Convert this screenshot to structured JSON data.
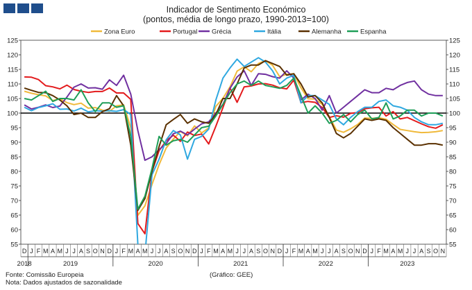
{
  "header": {
    "title": "Indicador de Sentimento Económico",
    "subtitle": "(pontos, média de longo prazo, 1990-2013=100)"
  },
  "footer": {
    "source": "Fonte: Comissão Europeia",
    "note": "Nota: Dados ajustados de sazonalidade",
    "credit": "(Gráfico: GEE)"
  },
  "chart_data": {
    "type": "line",
    "title": "Indicador de Sentimento Económico",
    "subtitle": "(pontos, média de longo prazo, 1990-2013=100)",
    "ylim": [
      55,
      125
    ],
    "yticks": [
      55,
      60,
      65,
      70,
      75,
      80,
      85,
      90,
      95,
      100,
      105,
      110,
      115,
      120,
      125
    ],
    "reference_line": 100,
    "legend_position": "top",
    "month_labels": [
      "D",
      "J",
      "F",
      "M",
      "A",
      "M",
      "J",
      "J",
      "A",
      "S",
      "O",
      "N",
      "D",
      "J",
      "F",
      "M",
      "A",
      "M",
      "J",
      "J",
      "A",
      "S",
      "O",
      "N",
      "D",
      "J",
      "F",
      "M",
      "A",
      "M",
      "J",
      "J",
      "A",
      "S",
      "O",
      "N",
      "D",
      "J",
      "F",
      "M",
      "A",
      "M",
      "J",
      "J",
      "A",
      "S",
      "O",
      "N",
      "D",
      "J",
      "F",
      "M",
      "A",
      "M",
      "J",
      "J",
      "A",
      "S",
      "O",
      "N"
    ],
    "years": [
      {
        "label": "2018",
        "index": 0
      },
      {
        "label": "2019",
        "index": 6.5
      },
      {
        "label": "2020",
        "index": 18.5
      },
      {
        "label": "2021",
        "index": 30.5
      },
      {
        "label": "2022",
        "index": 42.5
      },
      {
        "label": "2023",
        "index": 54
      }
    ],
    "series": [
      {
        "name": "Zona Euro",
        "color": "#f0b93a",
        "values": [
          107.5,
          106.8,
          106.3,
          105.9,
          104.3,
          104.9,
          103.6,
          102.9,
          103.4,
          101.7,
          101.9,
          101.0,
          100.6,
          102.5,
          102.8,
          95.0,
          64.9,
          68.2,
          75.5,
          82.3,
          88.0,
          91.1,
          93.7,
          92.2,
          95.6,
          93.2,
          94.9,
          102.3,
          105.1,
          109.0,
          114.4,
          115.9,
          114.2,
          117.0,
          118.0,
          116.4,
          112.5,
          113.3,
          113.5,
          108.7,
          104.9,
          104.8,
          103.0,
          98.8,
          94.2,
          93.4,
          94.6,
          96.1,
          98.3,
          98.2,
          98.4,
          97.9,
          96.1,
          94.4,
          94.0,
          93.6,
          93.3,
          93.4,
          93.6,
          94.0
        ]
      },
      {
        "name": "Portugal",
        "color": "#e31a1c",
        "values": [
          112.4,
          112.3,
          111.5,
          109.4,
          109.0,
          108.3,
          109.6,
          108.1,
          107.5,
          107.1,
          107.4,
          107.4,
          108.6,
          106.9,
          106.9,
          104.7,
          62.1,
          58.6,
          80.0,
          87.1,
          90.5,
          92.4,
          90.3,
          93.5,
          92.3,
          92.8,
          89.4,
          95.5,
          101.9,
          108.6,
          103.7,
          109.0,
          109.3,
          110.0,
          110.1,
          109.6,
          108.7,
          108.3,
          111.3,
          103.6,
          104.0,
          103.7,
          101.9,
          98.5,
          99.1,
          98.6,
          99.9,
          100.2,
          101.5,
          101.8,
          102.0,
          99.0,
          100.5,
          98.0,
          98.5,
          97.4,
          96.3,
          95.3,
          94.8,
          96.0
        ]
      },
      {
        "name": "Grécia",
        "color": "#7030a0",
        "values": [
          102.8,
          101.4,
          102.0,
          102.8,
          101.9,
          102.4,
          105.5,
          108.9,
          110.0,
          108.6,
          108.7,
          108.2,
          111.4,
          109.5,
          113.0,
          106.5,
          94.0,
          83.8,
          85.0,
          87.5,
          89.5,
          92.9,
          93.8,
          92.5,
          94.5,
          96.3,
          97.0,
          100.0,
          103.0,
          108.5,
          112.4,
          114.5,
          109.5,
          113.5,
          113.3,
          112.5,
          112.0,
          114.5,
          112.0,
          104.5,
          106.5,
          105.0,
          101.0,
          106.0,
          100.0,
          102.0,
          104.0,
          106.0,
          108.0,
          107.0,
          107.0,
          108.5,
          108.0,
          109.5,
          110.5,
          111.0,
          108.0,
          106.5,
          106.0,
          106.0
        ]
      },
      {
        "name": "Itália",
        "color": "#2fa8e0",
        "values": [
          102.0,
          100.8,
          101.9,
          102.5,
          103.2,
          101.3,
          101.4,
          100.7,
          101.7,
          100.4,
          100.8,
          100.7,
          100.8,
          100.6,
          101.2,
          99.5,
          55.0,
          51.5,
          78.8,
          84.2,
          90.8,
          94.0,
          92.5,
          84.2,
          91.0,
          92.0,
          94.5,
          104.5,
          112.0,
          115.5,
          118.5,
          116.0,
          117.5,
          119.0,
          117.5,
          114.5,
          110.0,
          112.0,
          113.0,
          103.5,
          106.0,
          106.0,
          104.5,
          103.0,
          98.0,
          96.0,
          98.5,
          100.5,
          102.0,
          102.0,
          104.0,
          104.5,
          102.5,
          102.0,
          101.0,
          98.5,
          97.0,
          96.0,
          96.0,
          96.5
        ]
      },
      {
        "name": "Alemanha",
        "color": "#5a3000",
        "values": [
          108.6,
          107.8,
          107.1,
          107.0,
          106.0,
          104.5,
          102.5,
          99.5,
          100.0,
          98.5,
          98.5,
          100.5,
          101.5,
          106.0,
          102.5,
          89.0,
          66.6,
          70.7,
          80.0,
          88.5,
          96.0,
          97.8,
          99.5,
          96.5,
          98.0,
          97.0,
          96.5,
          99.5,
          105.0,
          105.0,
          110.0,
          115.5,
          116.5,
          116.5,
          118.0,
          117.0,
          116.0,
          113.0,
          113.5,
          110.0,
          105.5,
          106.0,
          103.5,
          98.5,
          93.0,
          91.5,
          93.0,
          95.5,
          98.0,
          97.5,
          98.0,
          97.5,
          95.0,
          93.0,
          91.0,
          89.0,
          89.0,
          89.5,
          89.5,
          89.0
        ]
      },
      {
        "name": "Espanha",
        "color": "#1e9e58",
        "values": [
          105.0,
          104.5,
          106.0,
          107.5,
          104.0,
          105.0,
          105.0,
          104.5,
          108.0,
          103.5,
          100.5,
          103.5,
          103.5,
          102.0,
          102.5,
          92.0,
          67.0,
          71.5,
          81.0,
          92.0,
          89.0,
          90.5,
          91.0,
          90.0,
          92.5,
          95.0,
          95.5,
          99.0,
          103.0,
          107.0,
          110.0,
          111.0,
          109.5,
          111.0,
          109.5,
          109.0,
          108.5,
          109.5,
          112.0,
          106.0,
          100.0,
          102.5,
          100.0,
          96.5,
          97.5,
          99.5,
          97.0,
          99.5,
          101.0,
          98.0,
          98.5,
          103.5,
          98.0,
          99.0,
          101.0,
          101.0,
          99.0,
          100.0,
          100.0,
          99.0
        ]
      }
    ]
  }
}
